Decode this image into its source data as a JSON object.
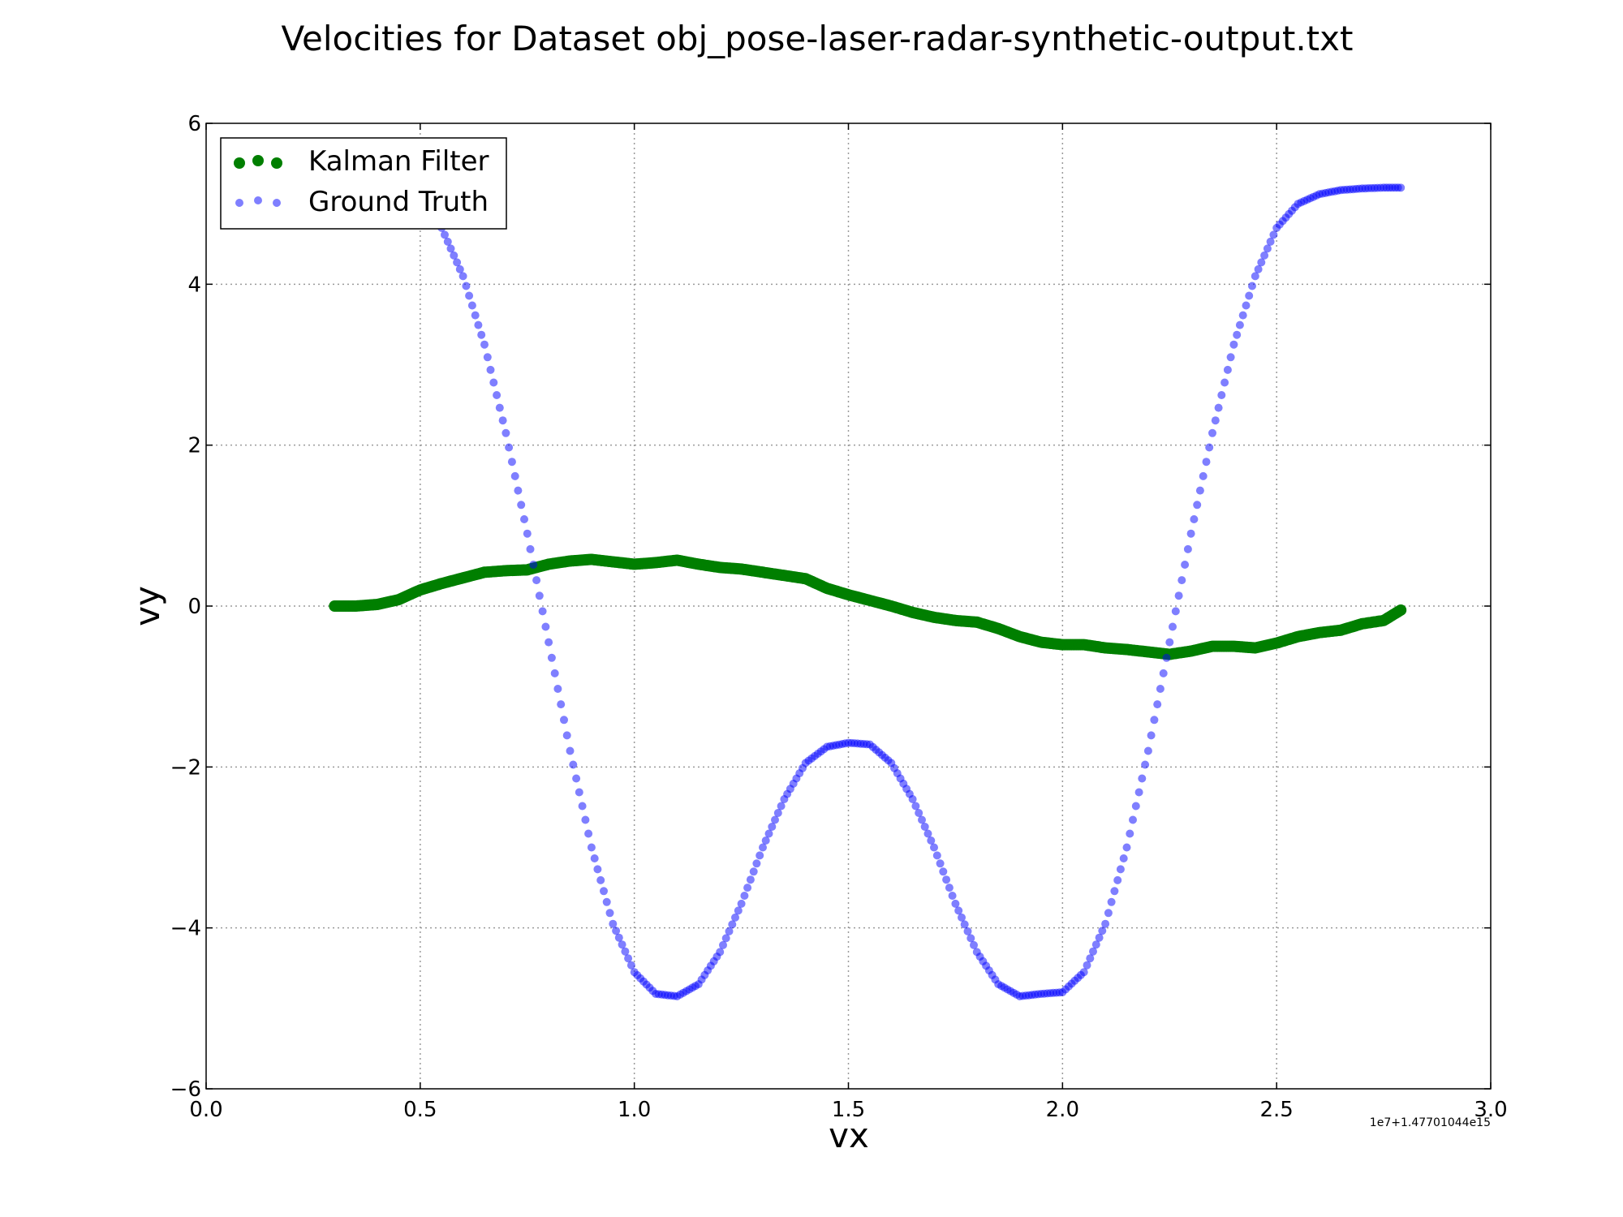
{
  "chart_data": {
    "type": "scatter",
    "title": "Velocities for Dataset obj_pose-laser-radar-synthetic-output.txt",
    "xlabel": "vx",
    "ylabel": "vy",
    "x_offset_label": "1e7+1.47701044e15",
    "xlim": [
      0.0,
      3.0
    ],
    "ylim": [
      -6,
      6
    ],
    "x_ticks": [
      "0.0",
      "0.5",
      "1.0",
      "1.5",
      "2.0",
      "2.5",
      "3.0"
    ],
    "y_ticks": [
      "−6",
      "−4",
      "−2",
      "0",
      "2",
      "4",
      "6"
    ],
    "grid": true,
    "legend_position": "top-left",
    "series": [
      {
        "name": "Kalman Filter",
        "color": "#007f00",
        "x": [
          0.3,
          0.35,
          0.4,
          0.45,
          0.5,
          0.55,
          0.6,
          0.65,
          0.7,
          0.75,
          0.8,
          0.85,
          0.9,
          0.95,
          1.0,
          1.05,
          1.1,
          1.15,
          1.2,
          1.25,
          1.3,
          1.35,
          1.4,
          1.45,
          1.5,
          1.55,
          1.6,
          1.65,
          1.7,
          1.75,
          1.8,
          1.85,
          1.9,
          1.95,
          2.0,
          2.05,
          2.1,
          2.15,
          2.2,
          2.25,
          2.3,
          2.35,
          2.4,
          2.45,
          2.5,
          2.55,
          2.6,
          2.65,
          2.7,
          2.75,
          2.79
        ],
        "y": [
          0.0,
          0.0,
          0.02,
          0.08,
          0.2,
          0.28,
          0.35,
          0.42,
          0.44,
          0.45,
          0.52,
          0.56,
          0.58,
          0.55,
          0.52,
          0.54,
          0.57,
          0.52,
          0.48,
          0.46,
          0.42,
          0.38,
          0.34,
          0.22,
          0.14,
          0.07,
          0.0,
          -0.08,
          -0.14,
          -0.18,
          -0.2,
          -0.28,
          -0.38,
          -0.45,
          -0.48,
          -0.48,
          -0.52,
          -0.54,
          -0.57,
          -0.6,
          -0.56,
          -0.5,
          -0.5,
          -0.52,
          -0.46,
          -0.38,
          -0.33,
          -0.3,
          -0.22,
          -0.18,
          -0.05
        ]
      },
      {
        "name": "Ground Truth",
        "color": "#0000ff",
        "x": [
          0.5,
          0.55,
          0.6,
          0.65,
          0.7,
          0.75,
          0.8,
          0.85,
          0.9,
          0.95,
          1.0,
          1.05,
          1.1,
          1.15,
          1.2,
          1.25,
          1.3,
          1.35,
          1.4,
          1.45,
          1.5,
          1.55,
          1.6,
          1.65,
          1.7,
          1.75,
          1.8,
          1.85,
          1.9,
          1.95,
          2.0,
          2.05,
          2.1,
          2.15,
          2.2,
          2.25,
          2.3,
          2.35,
          2.4,
          2.45,
          2.5,
          2.55,
          2.6,
          2.65,
          2.7,
          2.75,
          2.79
        ],
        "y": [
          5.0,
          4.7,
          4.1,
          3.25,
          2.15,
          0.9,
          -0.45,
          -1.8,
          -3.0,
          -3.95,
          -4.55,
          -4.82,
          -4.85,
          -4.7,
          -4.3,
          -3.7,
          -3.0,
          -2.4,
          -1.95,
          -1.75,
          -1.7,
          -1.72,
          -1.95,
          -2.4,
          -3.0,
          -3.7,
          -4.3,
          -4.7,
          -4.85,
          -4.82,
          -4.8,
          -4.55,
          -3.95,
          -3.0,
          -1.8,
          -0.45,
          0.9,
          2.15,
          3.25,
          4.1,
          4.7,
          5.0,
          5.12,
          5.17,
          5.19,
          5.2,
          5.2
        ]
      }
    ]
  }
}
